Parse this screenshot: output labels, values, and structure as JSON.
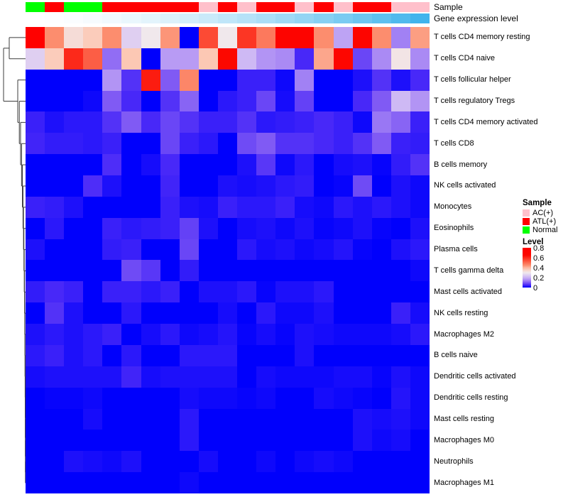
{
  "header": {
    "sample_annotation_label": "Sample",
    "gene_annotation_label": "Gene expression level"
  },
  "legend": {
    "sample_title": "Sample",
    "items": [
      {
        "label": "AC(+)",
        "color": "#ffc0cb"
      },
      {
        "label": "ATL(+)",
        "color": "#ff0000"
      },
      {
        "label": "Normal",
        "color": "#00ff00"
      }
    ],
    "level_title": "Level",
    "level_ticks": [
      "0.8",
      "0.6",
      "0.4",
      "0.2",
      "0"
    ]
  },
  "colors": {
    "annotation_sample": {
      "AC(+)": "#ffc0cb",
      "ATL(+)": "#ff0000",
      "Normal": "#00ff00"
    },
    "gene_gradient_start": "#ffffff",
    "gene_gradient_end": "#41b4ec",
    "heat_low": "#0000fc",
    "heat_mid": "#f0e8ec",
    "heat_high": "#ff0000",
    "dendrogram_line": "#3c3c3c"
  },
  "chart_data": {
    "type": "heatmap",
    "title": "",
    "n_cols": 21,
    "value_range": [
      0,
      0.8
    ],
    "legend_position": "right",
    "column_annotation_sample": [
      "Normal",
      "ATL(+)",
      "Normal",
      "Normal",
      "ATL(+)",
      "ATL(+)",
      "ATL(+)",
      "ATL(+)",
      "ATL(+)",
      "AC(+)",
      "ATL(+)",
      "AC(+)",
      "ATL(+)",
      "ATL(+)",
      "AC(+)",
      "ATL(+)",
      "AC(+)",
      "ATL(+)",
      "ATL(+)",
      "AC(+)",
      "AC(+)"
    ],
    "column_annotation_gene_level": [
      0.0,
      0.05,
      0.1,
      0.15,
      0.2,
      0.25,
      0.3,
      0.35,
      0.4,
      0.45,
      0.5,
      0.55,
      0.6,
      0.65,
      0.7,
      0.75,
      0.8,
      0.85,
      0.9,
      0.95,
      1.0
    ],
    "rows": [
      "T cells CD4 memory resting",
      "T cells CD4 naive",
      "T cells follicular helper",
      "T cells regulatory  Tregs",
      "T cells CD4 memory activated",
      "T cells CD8",
      "B cells memory",
      "NK cells activated",
      "Monocytes",
      "Eosinophils",
      "Plasma cells",
      "T cells gamma delta",
      "Mast cells activated",
      "NK cells resting",
      "Macrophages M2",
      "B cells naive",
      "Dendritic cells activated",
      "Dendritic cells resting",
      "Mast cells resting",
      "Macrophages M0",
      "Neutrophils",
      "Macrophages M1"
    ],
    "values": [
      [
        0.78,
        0.45,
        0.33,
        0.37,
        0.45,
        0.25,
        0.3,
        0.44,
        0.0,
        0.55,
        0.3,
        0.58,
        0.48,
        0.72,
        0.72,
        0.45,
        0.18,
        0.7,
        0.45,
        0.14,
        0.43
      ],
      [
        0.25,
        0.37,
        0.6,
        0.52,
        0.12,
        0.38,
        0.0,
        0.17,
        0.17,
        0.38,
        0.65,
        0.21,
        0.16,
        0.15,
        0.05,
        0.42,
        0.68,
        0.08,
        0.15,
        0.31,
        0.15
      ],
      [
        0.0,
        0.0,
        0.0,
        0.0,
        0.16,
        0.06,
        0.62,
        0.1,
        0.46,
        0.0,
        0.0,
        0.04,
        0.04,
        0.01,
        0.14,
        0.0,
        0.0,
        0.02,
        0.06,
        0.02,
        0.05
      ],
      [
        0.0,
        0.0,
        0.0,
        0.01,
        0.1,
        0.05,
        0.0,
        0.06,
        0.11,
        0.0,
        0.03,
        0.04,
        0.08,
        0.015,
        0.075,
        0.0,
        0.0,
        0.05,
        0.1,
        0.21,
        0.16
      ],
      [
        0.04,
        0.02,
        0.03,
        0.03,
        0.06,
        0.1,
        0.05,
        0.08,
        0.06,
        0.04,
        0.04,
        0.06,
        0.03,
        0.035,
        0.04,
        0.05,
        0.04,
        0.01,
        0.13,
        0.11,
        0.04
      ],
      [
        0.045,
        0.035,
        0.035,
        0.03,
        0.04,
        0.0,
        0.0,
        0.08,
        0.04,
        0.03,
        0.0,
        0.085,
        0.1,
        0.06,
        0.06,
        0.05,
        0.04,
        0.06,
        0.1,
        0.04,
        0.035
      ],
      [
        0.0,
        0.0,
        0.0,
        0.0,
        0.055,
        0.0,
        0.015,
        0.05,
        0.0,
        0.0,
        0.0,
        0.02,
        0.065,
        0.01,
        0.03,
        0.0,
        0.015,
        0.02,
        0.005,
        0.035,
        0.06
      ],
      [
        0.0,
        0.0,
        0.0,
        0.055,
        0.02,
        0.0,
        0.0,
        0.045,
        0.0,
        0.0,
        0.02,
        0.015,
        0.02,
        0.03,
        0.035,
        0.0,
        0.005,
        0.085,
        0.0,
        0.02,
        0.01
      ],
      [
        0.04,
        0.035,
        0.02,
        0.0,
        0.0,
        0.0,
        0.0,
        0.04,
        0.02,
        0.015,
        0.04,
        0.03,
        0.03,
        0.04,
        0.015,
        0.01,
        0.03,
        0.02,
        0.03,
        0.02,
        0.01
      ],
      [
        0.0,
        0.03,
        0.0,
        0.0,
        0.04,
        0.03,
        0.035,
        0.04,
        0.075,
        0.02,
        0.0,
        0.015,
        0.02,
        0.01,
        0.02,
        0.005,
        0.01,
        0.02,
        0.005,
        0.0,
        0.02
      ],
      [
        0.02,
        0.0,
        0.0,
        0.0,
        0.035,
        0.04,
        0.0,
        0.0,
        0.08,
        0.0,
        0.0,
        0.03,
        0.015,
        0.02,
        0.01,
        0.015,
        0.025,
        0.005,
        0.0,
        0.02,
        0.03
      ],
      [
        0.0,
        0.0,
        0.0,
        0.0,
        0.0,
        0.085,
        0.065,
        0.0,
        0.035,
        0.0,
        0.0,
        0.0,
        0.0,
        0.0,
        0.0,
        0.0,
        0.0,
        0.0,
        0.0,
        0.0,
        0.01
      ],
      [
        0.035,
        0.05,
        0.04,
        0.0,
        0.04,
        0.04,
        0.03,
        0.04,
        0.0,
        0.02,
        0.02,
        0.03,
        0.005,
        0.02,
        0.02,
        0.03,
        0.0,
        0.0,
        0.0,
        0.0,
        0.0
      ],
      [
        0.0,
        0.06,
        0.02,
        0.0,
        0.0,
        0.03,
        0.0,
        0.0,
        0.0,
        0.0,
        0.015,
        0.0,
        0.03,
        0.01,
        0.01,
        0.02,
        0.0,
        0.0,
        0.0,
        0.04,
        0.015
      ],
      [
        0.02,
        0.03,
        0.02,
        0.03,
        0.04,
        0.0,
        0.015,
        0.03,
        0.01,
        0.015,
        0.025,
        0.005,
        0.015,
        0.005,
        0.02,
        0.015,
        0.01,
        0.01,
        0.01,
        0.015,
        0.03
      ],
      [
        0.03,
        0.04,
        0.02,
        0.03,
        0.0,
        0.03,
        0.0,
        0.0,
        0.03,
        0.03,
        0.03,
        0.0,
        0.0,
        0.0,
        0.02,
        0.0,
        0.0,
        0.0,
        0.0,
        0.0,
        0.0
      ],
      [
        0.015,
        0.02,
        0.02,
        0.02,
        0.02,
        0.045,
        0.015,
        0.02,
        0.02,
        0.02,
        0.02,
        0.0,
        0.015,
        0.01,
        0.01,
        0.01,
        0.015,
        0.015,
        0.005,
        0.02,
        0.01
      ],
      [
        0.0,
        0.005,
        0.005,
        0.01,
        0.0,
        0.0,
        0.0,
        0.0,
        0.015,
        0.01,
        0.01,
        0.005,
        0.01,
        0.0,
        0.0,
        0.015,
        0.01,
        0.005,
        0.0,
        0.025,
        0.01
      ],
      [
        0.0,
        0.0,
        0.0,
        0.015,
        0.0,
        0.0,
        0.0,
        0.0,
        0.03,
        0.0,
        0.0,
        0.0,
        0.0,
        0.0,
        0.0,
        0.0,
        0.0,
        0.02,
        0.015,
        0.02,
        0.01
      ],
      [
        0.0,
        0.0,
        0.0,
        0.0,
        0.0,
        0.0,
        0.0,
        0.0,
        0.03,
        0.0,
        0.0,
        0.0,
        0.0,
        0.0,
        0.0,
        0.0,
        0.0,
        0.02,
        0.01,
        0.015,
        0.0
      ],
      [
        0.0,
        0.0,
        0.02,
        0.015,
        0.01,
        0.02,
        0.0,
        0.0,
        0.0,
        0.015,
        0.0,
        0.0,
        0.01,
        0.0,
        0.01,
        0.015,
        0.01,
        0.0,
        0.0,
        0.0,
        0.0
      ],
      [
        0.0,
        0.0,
        0.0,
        0.0,
        0.0,
        0.0,
        0.0,
        0.0,
        0.01,
        0.0,
        0.0,
        0.0,
        0.0,
        0.0,
        0.0,
        0.0,
        0.0,
        0.0,
        0.0,
        0.0,
        0.0
      ]
    ]
  }
}
